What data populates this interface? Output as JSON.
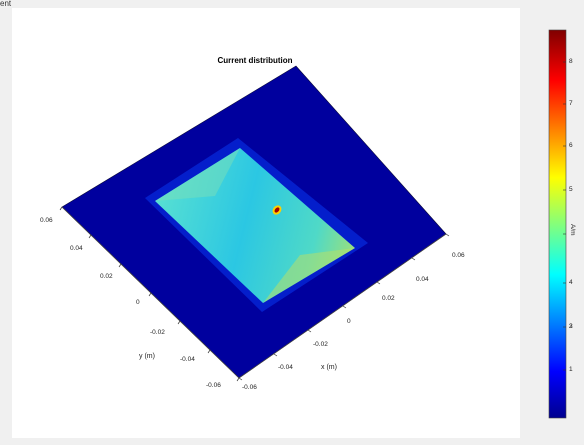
{
  "top_fragment": "ent",
  "title": "Current distribution",
  "axes": {
    "ylabel": "y (m)",
    "xlabel": "x (m)",
    "y_ticks": [
      "0.06",
      "0.04",
      "0.02",
      "0",
      "-0.02",
      "-0.04",
      "-0.06"
    ],
    "x_ticks": [
      "0.06",
      "0.04",
      "0.02",
      "0",
      "-0.02",
      "-0.04",
      "-0.06"
    ]
  },
  "colorbar": {
    "label": "A/m",
    "ticks": [
      "8",
      "7",
      "6",
      "5",
      "4",
      "3",
      "2",
      "1"
    ],
    "range": [
      0,
      8.8
    ],
    "colormap": "jet"
  },
  "colors": {
    "background": "#f0f0f0",
    "plot_background": "#ffffff",
    "ground_plane": "#00009c"
  }
}
